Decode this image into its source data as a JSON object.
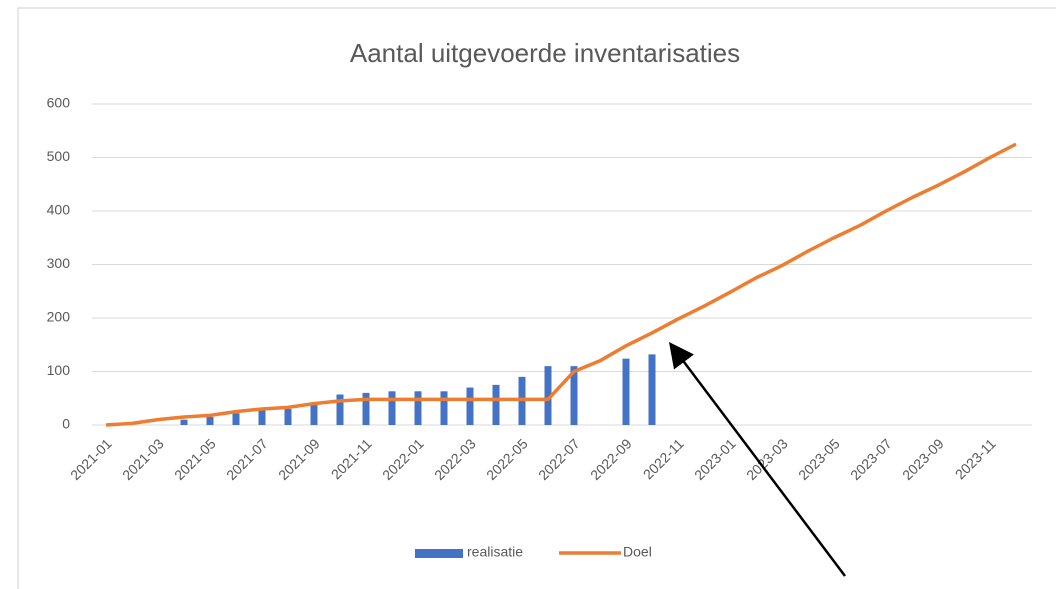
{
  "chart_data": {
    "type": "bar_line",
    "title": "Aantal uitgevoerde inventarisaties",
    "categories": [
      "2021-01",
      null,
      "2021-03",
      null,
      "2021-05",
      null,
      "2021-07",
      null,
      "2021-09",
      null,
      "2021-11",
      null,
      "2022-01",
      null,
      "2022-03",
      null,
      "2022-05",
      null,
      "2022-07",
      null,
      "2022-09",
      null,
      "2022-11",
      null,
      "2023-01",
      null,
      "2023-03",
      null,
      "2023-05",
      null,
      "2023-07",
      null,
      "2023-09",
      null,
      "2023-11",
      null
    ],
    "series": [
      {
        "name": "realisatie",
        "type": "bar",
        "color": "#4472c4",
        "values": [
          null,
          null,
          null,
          10,
          15,
          22,
          28,
          30,
          40,
          57,
          60,
          63,
          63,
          63,
          70,
          75,
          90,
          110,
          110,
          null,
          124,
          132,
          null,
          null,
          null,
          null,
          null,
          null,
          null,
          null,
          null,
          null,
          null,
          null,
          null,
          null
        ]
      },
      {
        "name": "Doel",
        "type": "line",
        "color": "#ed7d31",
        "values": [
          0,
          3,
          10,
          15,
          18,
          25,
          30,
          33,
          40,
          45,
          48,
          48,
          48,
          48,
          48,
          48,
          48,
          48,
          100,
          120,
          148,
          172,
          198,
          222,
          248,
          275,
          298,
          325,
          350,
          373,
          400,
          425,
          448,
          473,
          500,
          525
        ]
      }
    ],
    "ylim": [
      0,
      600
    ],
    "yticks": [
      0,
      100,
      200,
      300,
      400,
      500,
      600
    ],
    "grid": true,
    "legend": "bottom"
  }
}
